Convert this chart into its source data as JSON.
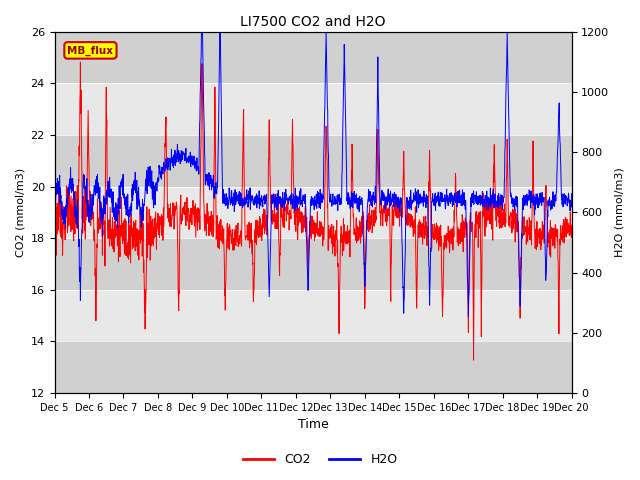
{
  "title": "LI7500 CO2 and H2O",
  "xlabel": "Time",
  "ylabel_left": "CO2 (mmol/m3)",
  "ylabel_right": "H2O (mmol/m3)",
  "ylim_left": [
    12,
    26
  ],
  "ylim_right": [
    0,
    1200
  ],
  "yticks_left": [
    12,
    14,
    16,
    18,
    20,
    22,
    24,
    26
  ],
  "yticks_right": [
    0,
    200,
    400,
    600,
    800,
    1000,
    1200
  ],
  "xtick_labels": [
    "Dec 5",
    "Dec 6",
    "Dec 7",
    "Dec 8",
    "Dec 9",
    "Dec 10",
    "Dec 11",
    "Dec 12",
    "Dec 13",
    "Dec 14",
    "Dec 15",
    "Dec 16",
    "Dec 17",
    "Dec 18",
    "Dec 19",
    "Dec 20"
  ],
  "co2_color": "#ff0000",
  "h2o_color": "#0000ff",
  "bg_color": "#ffffff",
  "band_light": "#e8e8e8",
  "band_dark": "#d0d0d0",
  "annotation_text": "MB_flux",
  "annotation_bg": "#ffff00",
  "annotation_border": "#cc0000",
  "legend_co2": "CO2",
  "legend_h2o": "H2O",
  "n_points": 2000
}
